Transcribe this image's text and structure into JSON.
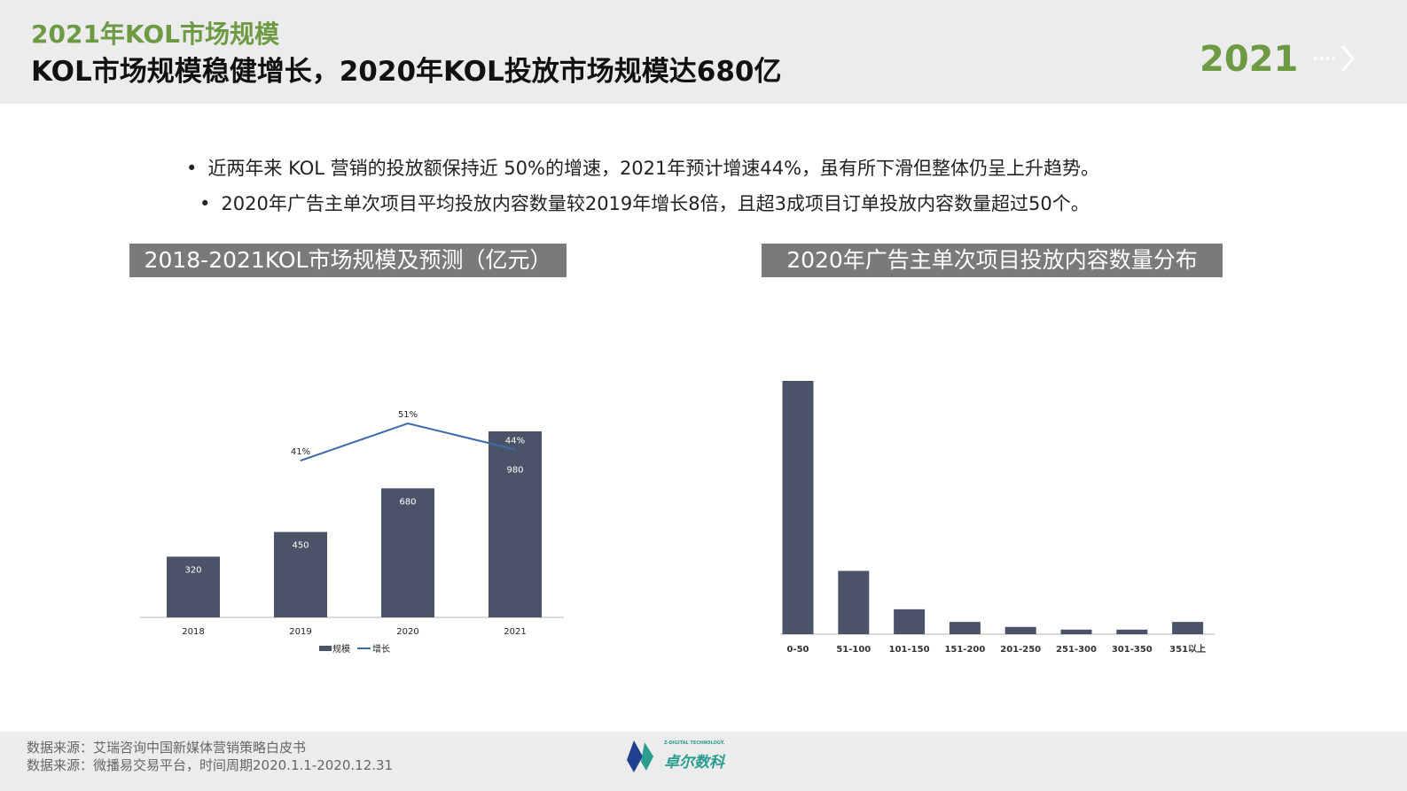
{
  "header": {
    "kicker": "2021年KOL市场规模",
    "title": "KOL市场规模稳健增长，2020年KOL投放市场规模达680亿",
    "year": "2021"
  },
  "bullets": [
    "近两年来 KOL 营销的投放额保持近 50%的增速，2021年预计增速44%，虽有所下滑但整体仍呈上升趋势。",
    "2020年广告主单次项目平均投放内容数量较2019年增长8倍，且超3成项目订单投放内容数量超过50个。"
  ],
  "chart_data": [
    {
      "type": "bar",
      "title": "2018-2021KOL市场规模及预测（亿元）",
      "categories": [
        "2018",
        "2019",
        "2020",
        "2021"
      ],
      "series": [
        {
          "name": "规模",
          "type": "bar",
          "values": [
            320,
            450,
            680,
            980
          ],
          "labels": [
            "320",
            "450",
            "680",
            "980"
          ],
          "color": "#4a5367"
        },
        {
          "name": "增长",
          "type": "line",
          "values": [
            null,
            41,
            51,
            44
          ],
          "labels": [
            "",
            "41%",
            "51%",
            "44%"
          ],
          "color": "#3d6aa8"
        }
      ],
      "legend": "bottom",
      "grid": false
    },
    {
      "type": "bar",
      "title": "2020年广告主单次项目投放内容数量分布",
      "categories": [
        "0-50",
        "51-100",
        "101-150",
        "151-200",
        "201-250",
        "251-300",
        "301-350",
        "351以上"
      ],
      "values": [
        66,
        16.5,
        6.5,
        3.2,
        1.9,
        1.2,
        1.2,
        3.2
      ],
      "color": "#4a5367",
      "legend": "none",
      "grid": false
    }
  ],
  "footer": {
    "source1": "数据来源：艾瑞咨询中国新媒体营销策略白皮书",
    "source2": "数据来源：微播易交易平台，时间周期2020.1.1-2020.12.31",
    "logo_text": "卓尔数科",
    "logo_sub": "Z-DIGITAL TECHNOLOGY."
  }
}
